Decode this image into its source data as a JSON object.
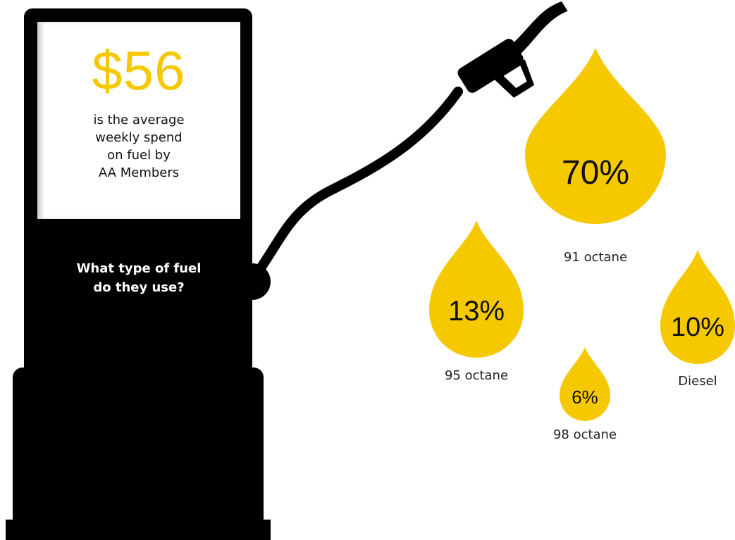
{
  "pump": {
    "headline_figure": "$56",
    "caption_lines": [
      "is the average",
      "weekly spend",
      "on fuel by",
      "AA Members"
    ],
    "question_lines": [
      "What type of fuel",
      "do they use?"
    ]
  },
  "colors": {
    "accent": "#f5c800",
    "pump": "#000000"
  },
  "fuel_types": [
    {
      "value": "70%",
      "label": "91 octane"
    },
    {
      "value": "13%",
      "label": "95 octane"
    },
    {
      "value": "6%",
      "label": "98 octane"
    },
    {
      "value": "10%",
      "label": "Diesel"
    }
  ]
}
